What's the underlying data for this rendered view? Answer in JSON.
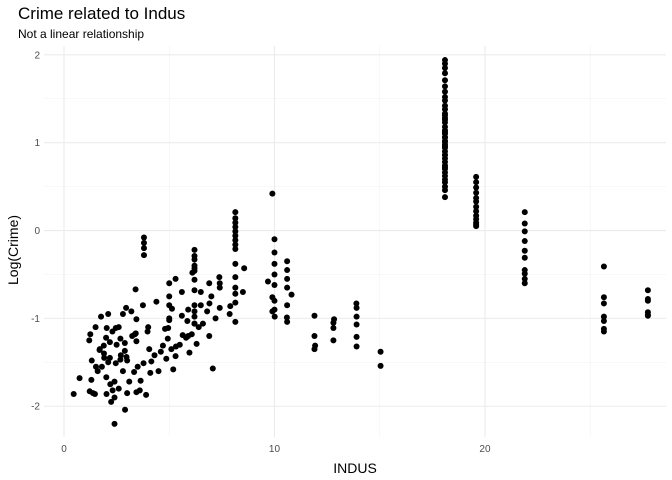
{
  "chart_data": {
    "type": "scatter",
    "title": "Crime related to Indus",
    "subtitle": "Not a linear relationship",
    "xlabel": "INDUS",
    "ylabel": "Log(Crime)",
    "xlim": [
      -0.95,
      28.6
    ],
    "ylim": [
      -2.35,
      2.1
    ],
    "x_ticks": [
      0,
      10,
      20
    ],
    "y_ticks": [
      -2,
      -1,
      0,
      1,
      2
    ],
    "x_tick_labels": [
      "0",
      "10",
      "20"
    ],
    "y_tick_labels": [
      "-2",
      "-1",
      "0",
      "1",
      "2"
    ],
    "grid": true,
    "point_color": "#000000",
    "series": [
      {
        "x": [
          0.46,
          0.74,
          1.22,
          1.25,
          1.32,
          1.38,
          1.47,
          1.52,
          1.69,
          1.76,
          1.89,
          1.91,
          2.01,
          2.02,
          2.03,
          2.18,
          2.18,
          2.24,
          2.31,
          2.46,
          2.46,
          2.68,
          2.68,
          2.89,
          2.89,
          2.95,
          2.97,
          3.24,
          3.33,
          3.37,
          3.41,
          3.44,
          3.44,
          3.44,
          3.64,
          3.75,
          3.78,
          3.97,
          4.05,
          4.15,
          4.39,
          4.49,
          4.86,
          4.93,
          4.95,
          5.0,
          5.13,
          5.19,
          5.32,
          5.64,
          5.86,
          5.96,
          6.07,
          6.2,
          6.91,
          7.07,
          7.38,
          7.87,
          8.14,
          8.56,
          9.69,
          9.9,
          10.01,
          10.59,
          10.81,
          11.93,
          12.83,
          13.89,
          15.04,
          18.1,
          19.58,
          21.89,
          25.65,
          27.74,
          1.3,
          1.6,
          2.1,
          2.7,
          3.0,
          4.6,
          5.5,
          6.6,
          7.2,
          1.2,
          1.7,
          2.2,
          2.4,
          3.6,
          4.1,
          5.8,
          6.4,
          2.0,
          2.3,
          2.8,
          3.2,
          5.3,
          6.3,
          1.8,
          2.6,
          3.1,
          4.3,
          4.7,
          2.4,
          2.8,
          3.5,
          4.8,
          1.5,
          2.1,
          2.9,
          3.9,
          2.6,
          3.4,
          5.1,
          1.9,
          2.5,
          3.0,
          5.6,
          6.8,
          7.4,
          2.4,
          4.0,
          3.8,
          3.8,
          3.8,
          3.8,
          6.2,
          6.2,
          6.2,
          6.2,
          6.2,
          6.2,
          6.2,
          6.2,
          6.2,
          6.2,
          6.2,
          6.2,
          8.14,
          8.14,
          8.14,
          8.14,
          8.14,
          8.14,
          8.14,
          8.14,
          8.14,
          8.14,
          8.14,
          8.14,
          8.14,
          8.14,
          9.9,
          9.9,
          10.0,
          10.0,
          10.0,
          10.0,
          10.0,
          10.0,
          10.0,
          10.6,
          10.6,
          10.6,
          10.6,
          10.6,
          10.6,
          11.9,
          11.9,
          11.9,
          12.8,
          12.8,
          12.8,
          13.9,
          13.9,
          13.9,
          13.9,
          13.9,
          15.04,
          18.1,
          18.1,
          18.1,
          18.1,
          18.1,
          18.1,
          18.1,
          18.1,
          18.1,
          18.1,
          18.1,
          18.1,
          18.1,
          18.1,
          18.1,
          18.1,
          18.1,
          18.1,
          18.1,
          18.1,
          18.1,
          18.1,
          18.1,
          18.1,
          18.1,
          18.1,
          18.1,
          18.1,
          18.1,
          18.1,
          18.1,
          18.1,
          18.1,
          18.1,
          18.1,
          18.1,
          18.1,
          18.1,
          18.1,
          18.1,
          18.1,
          19.58,
          19.58,
          19.58,
          19.58,
          19.58,
          19.58,
          19.58,
          19.58,
          19.58,
          19.58,
          19.58,
          19.58,
          21.89,
          21.89,
          21.89,
          21.89,
          21.89,
          21.89,
          21.89,
          21.89,
          21.89,
          25.65,
          25.65,
          25.65,
          25.65,
          25.65,
          25.65,
          27.74,
          27.74,
          27.74,
          27.74,
          27.74,
          5.0,
          5.0,
          5.0,
          5.0,
          5.3,
          5.6,
          5.9,
          5.9,
          6.1,
          6.5,
          6.5,
          6.9,
          6.9,
          7.0,
          7.4,
          7.4,
          7.9,
          8.5
        ],
        "y": [
          -1.86,
          -1.68,
          -1.83,
          -1.18,
          -1.48,
          -1.85,
          -1.86,
          -1.55,
          -1.36,
          -0.98,
          -1.31,
          -1.45,
          -1.67,
          -1.86,
          -1.11,
          -1.27,
          -1.45,
          -1.95,
          -1.82,
          -1.51,
          -1.11,
          -1.47,
          -1.23,
          -1.28,
          -1.37,
          -0.88,
          -1.44,
          -1.2,
          -1.61,
          -1.18,
          -1.17,
          -1.84,
          -1.26,
          -1.01,
          -1.71,
          -0.85,
          -1.51,
          -1.15,
          -1.35,
          -1.49,
          -0.81,
          -1.6,
          -1.46,
          -1.23,
          -1.11,
          -1.02,
          -0.89,
          -1.58,
          -1.32,
          -1.19,
          -1.03,
          -1.39,
          -1.18,
          -1.06,
          -0.83,
          -1.57,
          -0.53,
          -0.95,
          -1.04,
          -0.43,
          -0.58,
          -0.92,
          -0.98,
          -0.99,
          -0.73,
          -1.31,
          -1.01,
          -0.83,
          -1.54,
          1.94,
          0.61,
          0.21,
          -0.41,
          -0.68,
          -1.7,
          -1.6,
          -1.5,
          -1.42,
          -1.48,
          -1.38,
          -1.3,
          -1.06,
          -1.0,
          -1.25,
          -1.35,
          -1.75,
          -1.9,
          -1.82,
          -1.62,
          -1.22,
          -1.1,
          -1.22,
          -1.15,
          -0.95,
          -0.92,
          -1.43,
          -1.29,
          -1.55,
          -1.1,
          -1.72,
          -1.42,
          -1.31,
          -2.2,
          -1.6,
          -1.55,
          -1.12,
          -1.1,
          -0.95,
          -2.04,
          -1.87,
          -1.8,
          -0.67,
          -1.35,
          -1.4,
          -1.3,
          -1.85,
          -0.97,
          -0.92,
          -0.88,
          -1.72,
          -1.1,
          -0.08,
          -0.14,
          -0.2,
          -0.28,
          -0.22,
          -0.29,
          -0.33,
          -0.4,
          -0.43,
          -0.46,
          -0.56,
          -0.68,
          -0.85,
          -0.92,
          -1.06,
          -0.98,
          0.21,
          0.14,
          0.09,
          0.04,
          -0.01,
          -0.06,
          -0.11,
          -0.16,
          -0.21,
          -0.38,
          -0.53,
          -0.65,
          -0.72,
          -0.82,
          0.42,
          -0.76,
          -0.1,
          -0.25,
          -0.38,
          -0.5,
          -0.62,
          -0.8,
          -0.9,
          -0.35,
          -0.45,
          -0.55,
          -0.65,
          -0.85,
          -1.04,
          -0.97,
          -1.2,
          -1.35,
          -1.05,
          -1.11,
          -1.25,
          -0.88,
          -0.98,
          -1.07,
          -1.21,
          -1.32,
          -1.38,
          1.9,
          1.85,
          1.79,
          1.71,
          1.64,
          1.58,
          1.52,
          1.48,
          1.42,
          1.38,
          1.33,
          1.28,
          1.23,
          1.18,
          1.14,
          1.1,
          1.06,
          1.02,
          0.98,
          0.94,
          0.9,
          0.86,
          0.82,
          0.78,
          0.74,
          0.7,
          0.66,
          0.62,
          0.58,
          0.55,
          0.5,
          0.46,
          0.38,
          1.31,
          1.06,
          0.96,
          1.26,
          1.12,
          0.86,
          1.01,
          0.72,
          0.55,
          0.49,
          0.43,
          0.37,
          0.33,
          0.27,
          0.22,
          0.17,
          0.13,
          0.09,
          0.07,
          0.05,
          0.08,
          -0.01,
          -0.12,
          -0.23,
          -0.31,
          -0.45,
          -0.49,
          -0.55,
          -0.6,
          -0.76,
          -0.83,
          -0.98,
          -1.03,
          -1.12,
          -1.15,
          -0.78,
          -0.8,
          -0.93,
          -0.96,
          -0.97,
          -0.6,
          -0.75,
          -0.85,
          -1.0,
          -0.55,
          -0.7,
          -0.9,
          -1.2,
          -0.48,
          -0.7,
          -0.85,
          -1.2,
          -0.6,
          -0.75,
          -0.65,
          -0.6,
          -0.86,
          -0.7
        ]
      }
    ]
  }
}
